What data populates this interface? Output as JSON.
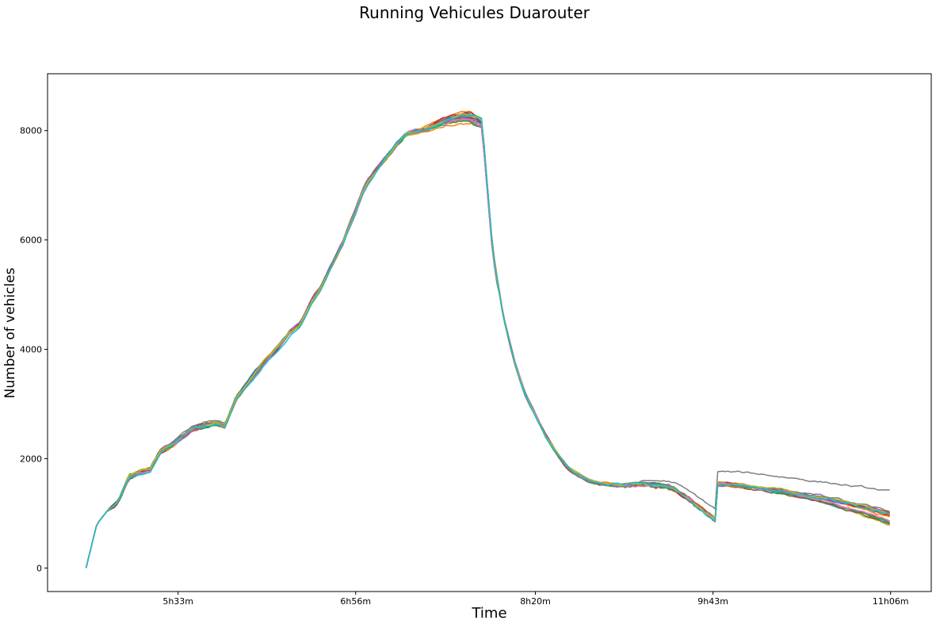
{
  "chart_data": {
    "type": "line",
    "title": "Running Vehicules Duarouter",
    "xlabel": "Time",
    "ylabel": "Number of vehicles",
    "x_tick_labels": [
      "5h33m",
      "6h56m",
      "8h20m",
      "9h43m",
      "11h06m"
    ],
    "x_tick_minutes": [
      333,
      416,
      500,
      583,
      666
    ],
    "y_ticks": [
      0,
      2000,
      4000,
      6000,
      8000
    ],
    "xlim_minutes": [
      272,
      685
    ],
    "ylim": [
      -430,
      9040
    ],
    "grid": false,
    "legend": "none",
    "series_count": 20,
    "series_colors": [
      "#1f77b4",
      "#ff7f0e",
      "#2ca02c",
      "#d62728",
      "#9467bd",
      "#8c564b",
      "#e377c2",
      "#7f7f7f",
      "#bcbd22",
      "#17becf"
    ],
    "x_minutes": [
      290,
      295,
      300,
      305,
      310,
      315,
      320,
      325,
      330,
      335,
      340,
      345,
      350,
      355,
      360,
      365,
      370,
      375,
      380,
      385,
      390,
      395,
      400,
      405,
      410,
      415,
      420,
      425,
      430,
      435,
      440,
      445,
      450,
      455,
      460,
      465,
      470,
      475,
      480,
      485,
      490,
      495,
      500,
      505,
      510,
      515,
      520,
      525,
      530,
      535,
      540,
      545,
      550,
      555,
      560,
      565,
      570,
      575,
      580,
      585,
      590,
      595,
      600,
      605,
      610,
      615,
      620,
      625,
      630,
      635,
      640,
      645,
      650,
      655,
      660,
      665
    ],
    "mean_values": [
      0,
      800,
      1050,
      1200,
      1650,
      1750,
      1800,
      2150,
      2250,
      2400,
      2550,
      2600,
      2650,
      2600,
      3100,
      3350,
      3600,
      3850,
      4050,
      4300,
      4450,
      4850,
      5150,
      5550,
      5950,
      6450,
      6950,
      7250,
      7500,
      7750,
      7950,
      8000,
      8050,
      8150,
      8200,
      8250,
      8250,
      8150,
      5800,
      4600,
      3800,
      3200,
      2800,
      2400,
      2100,
      1850,
      1700,
      1600,
      1550,
      1530,
      1520,
      1530,
      1540,
      1520,
      1500,
      1450,
      1300,
      1150,
      1000,
      850
    ],
    "mean_x_minutes": [
      290,
      295,
      300,
      305,
      310,
      315,
      320,
      325,
      330,
      335,
      340,
      345,
      350,
      355,
      360,
      365,
      370,
      375,
      380,
      385,
      390,
      395,
      400,
      405,
      410,
      415,
      420,
      425,
      430,
      435,
      440,
      445,
      450,
      455,
      460,
      465,
      470,
      475,
      480,
      485,
      490,
      495,
      500,
      505,
      510,
      515,
      520,
      525,
      530,
      535,
      540,
      545,
      550,
      555,
      560,
      565,
      570,
      575,
      580,
      585
    ],
    "note_series": []
  }
}
